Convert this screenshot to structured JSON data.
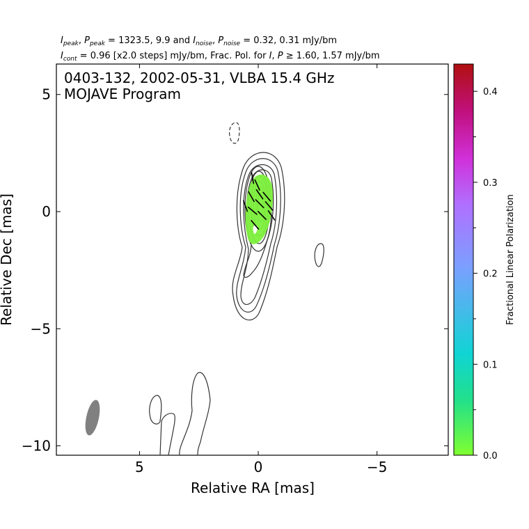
{
  "header": {
    "line1": {
      "i_peak_sym": "I",
      "i_peak_sub": "peak",
      "p_peak_sym": "P",
      "p_peak_sub": "peak",
      "peak_values": " = 1323.5, 9.9 and ",
      "i_noise_sym": "I",
      "i_noise_sub": "noise",
      "p_noise_sym": "P",
      "p_noise_sub": "noise",
      "noise_values": " = 0.32, 0.31 mJy/bm"
    },
    "line2": {
      "i_cont_sym": "I",
      "i_cont_sub": "cont",
      "cont_text": " = 0.96 [x2.0 steps] mJy/bm, Frac. Pol. for ",
      "i_sym": "I",
      "p_sym": "P",
      "threshold_text": " ≥  1.60, 1.57 mJy/bm"
    }
  },
  "chart_data": {
    "type": "contour",
    "source": "0403-132",
    "date": "2002-05-31",
    "instrument": "VLBA 15.4 GHz",
    "title_line1": "0403-132, 2002-05-31, VLBA 15.4 GHz",
    "title_line2": "MOJAVE Program",
    "xlabel": "Relative RA [mas]",
    "ylabel": "Relative Dec [mas]",
    "xlim": [
      8.5,
      -8.0
    ],
    "ylim": [
      -10.4,
      6.3
    ],
    "xticks": [
      5,
      0,
      -5
    ],
    "xtick_labels": [
      "5",
      "0",
      "−5"
    ],
    "yticks": [
      5,
      0,
      -5,
      -10
    ],
    "ytick_labels": [
      "5",
      "0",
      "−5",
      "−10"
    ],
    "colorbar": {
      "label": "Fractional Linear Polarization",
      "range": [
        0.0,
        0.43
      ],
      "ticks": [
        0.0,
        0.1,
        0.2,
        0.3,
        0.4
      ],
      "tick_labels": [
        "0.0",
        "0.1",
        "0.2",
        "0.3",
        "0.4"
      ],
      "colors": [
        "#80ff30",
        "#22e08a",
        "#10d4d4",
        "#7aa0ff",
        "#b070ff",
        "#d030d8",
        "#c0107c",
        "#b01010"
      ]
    },
    "contour_color": "#333333",
    "beam": {
      "ra": 7.0,
      "dec": -8.8,
      "major": 1.6,
      "minor": 0.55,
      "pa_deg": 12,
      "color": "#808080"
    },
    "fractional_polarization_region": {
      "ra": 0.2,
      "dec": 0.2,
      "half_width": 0.55,
      "half_height": 1.55,
      "value": 0.02,
      "color": "#7df03c"
    },
    "evpa_vectors": [
      {
        "ra": 0.3,
        "dec": 1.2,
        "angle_deg": -10
      },
      {
        "ra": 0.1,
        "dec": 0.9,
        "angle_deg": -25
      },
      {
        "ra": 0.0,
        "dec": 0.5,
        "angle_deg": -35
      },
      {
        "ra": 0.35,
        "dec": 0.4,
        "angle_deg": -30
      },
      {
        "ra": -0.3,
        "dec": 0.4,
        "angle_deg": -40
      },
      {
        "ra": 0.0,
        "dec": 0.1,
        "angle_deg": -45
      },
      {
        "ra": -0.4,
        "dec": 0.0,
        "angle_deg": -40
      },
      {
        "ra": 0.3,
        "dec": -0.2,
        "angle_deg": -50
      },
      {
        "ra": -0.1,
        "dec": -0.4,
        "angle_deg": -45
      },
      {
        "ra": -0.5,
        "dec": -0.4,
        "angle_deg": -35
      },
      {
        "ra": 0.2,
        "dec": -0.8,
        "angle_deg": -40
      },
      {
        "ra": 0.6,
        "dec": 0.0,
        "angle_deg": -20
      }
    ]
  }
}
